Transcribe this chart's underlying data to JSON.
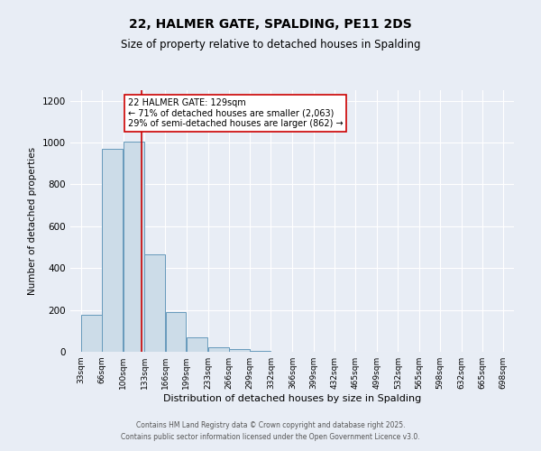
{
  "title": "22, HALMER GATE, SPALDING, PE11 2DS",
  "subtitle": "Size of property relative to detached houses in Spalding",
  "xlabel": "Distribution of detached houses by size in Spalding",
  "ylabel": "Number of detached properties",
  "bar_color": "#ccdce8",
  "bar_edge_color": "#6699bb",
  "bg_color": "#e8edf5",
  "grid_color": "#ffffff",
  "annotation_box_color": "#ffffff",
  "annotation_box_edge": "#cc0000",
  "red_line_x": 129,
  "annotation_line1": "22 HALMER GATE: 129sqm",
  "annotation_line2": "← 71% of detached houses are smaller (2,063)",
  "annotation_line3": "29% of semi-detached houses are larger (862) →",
  "bins": [
    33,
    66,
    100,
    133,
    166,
    199,
    233,
    266,
    299,
    332,
    366,
    399,
    432,
    465,
    499,
    532,
    565,
    598,
    632,
    665,
    698
  ],
  "bin_labels": [
    "33sqm",
    "66sqm",
    "100sqm",
    "133sqm",
    "166sqm",
    "199sqm",
    "233sqm",
    "266sqm",
    "299sqm",
    "332sqm",
    "366sqm",
    "399sqm",
    "432sqm",
    "465sqm",
    "499sqm",
    "532sqm",
    "565sqm",
    "598sqm",
    "632sqm",
    "665sqm",
    "698sqm"
  ],
  "counts": [
    175,
    970,
    1005,
    465,
    190,
    70,
    20,
    15,
    5,
    0,
    0,
    0,
    0,
    0,
    0,
    0,
    0,
    0,
    0,
    0
  ],
  "ylim": [
    0,
    1250
  ],
  "yticks": [
    0,
    200,
    400,
    600,
    800,
    1000,
    1200
  ],
  "footer1": "Contains HM Land Registry data © Crown copyright and database right 2025.",
  "footer2": "Contains public sector information licensed under the Open Government Licence v3.0."
}
